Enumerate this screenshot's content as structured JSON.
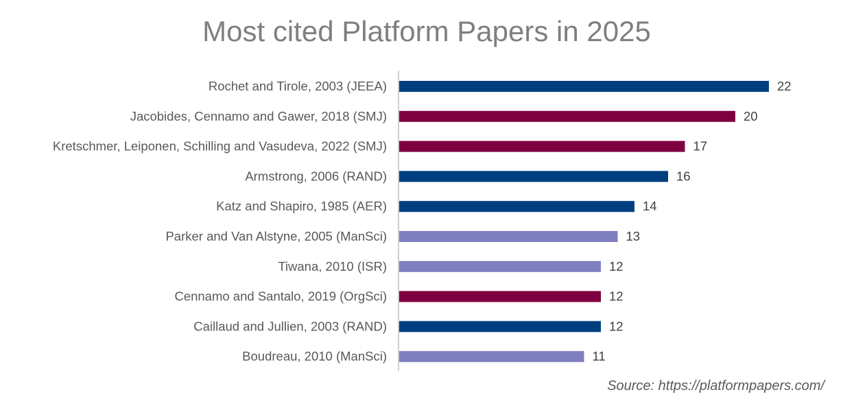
{
  "chart_data": {
    "type": "bar",
    "orientation": "horizontal",
    "title": "Most cited Platform Papers in 2025",
    "source": "Source: https://platformpapers.com/",
    "xlabel": "",
    "ylabel": "",
    "xlim": [
      0,
      22
    ],
    "grid": false,
    "legend": "none",
    "categories": [
      "Rochet and Tirole, 2003 (JEEA)",
      "Jacobides, Cennamo and Gawer, 2018 (SMJ)",
      "Kretschmer, Leiponen, Schilling and Vasudeva, 2022 (SMJ)",
      "Armstrong, 2006 (RAND)",
      "Katz and Shapiro, 1985 (AER)",
      "Parker and Van Alstyne, 2005 (ManSci)",
      "Tiwana, 2010 (ISR)",
      "Cennamo and Santalo, 2019 (OrgSci)",
      "Caillaud and Jullien, 2003 (RAND)",
      "Boudreau, 2010 (ManSci)"
    ],
    "values": [
      22,
      20,
      17,
      16,
      14,
      13,
      12,
      12,
      12,
      11
    ],
    "bar_colors": [
      "#003f7f",
      "#7f0040",
      "#7f0040",
      "#003f7f",
      "#003f7f",
      "#7f7fbf",
      "#7f7fbf",
      "#7f0040",
      "#003f7f",
      "#7f7fbf"
    ],
    "axis_color": "#bfbfbf"
  }
}
